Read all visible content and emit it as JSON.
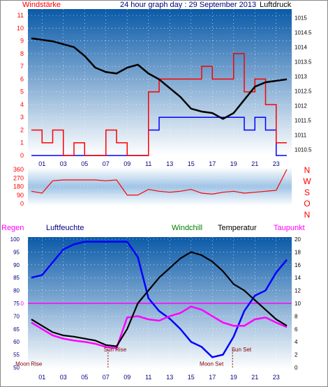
{
  "header": {
    "wind_title": "Windstärke",
    "graph_title": "24 hour graph day : 29 September 2013",
    "pressure_title": "Luftdruck"
  },
  "colors": {
    "wind_speed": "#ff0000",
    "wind_gust": "#0000ff",
    "pressure": "#000000",
    "direction": "#ff0000",
    "humidity": "#0000ff",
    "temperature": "#000000",
    "windchill": "#008000",
    "dewpoint": "#ff00ff",
    "zero_line": "#ff00ff",
    "label_dark": "#000080",
    "bg_top": "#0a5aa8",
    "bg_bottom": "#ffffff"
  },
  "chart_data": [
    {
      "type": "line",
      "id": "wind_pressure",
      "left_axis_label": "Windstärke",
      "right_axis_label": "Luftdruck",
      "left_ticks": [
        0,
        1,
        2,
        3,
        4,
        5,
        6,
        7,
        8,
        9,
        10,
        11
      ],
      "right_ticks": [
        1010.5,
        1011,
        1011.5,
        1012,
        1012.5,
        1013,
        1013.5,
        1014,
        1014.5,
        1015
      ],
      "x_labels": [
        "01",
        "03",
        "05",
        "07",
        "09",
        "11",
        "13",
        "15",
        "17",
        "19",
        "21",
        "23"
      ],
      "hours": [
        0,
        1,
        2,
        3,
        4,
        5,
        6,
        7,
        8,
        9,
        10,
        11,
        12,
        13,
        14,
        15,
        16,
        17,
        18,
        19,
        20,
        21,
        22,
        23,
        24
      ],
      "pressure": [
        1014.3,
        1014.25,
        1014.2,
        1014.1,
        1014.0,
        1013.7,
        1013.3,
        1013.15,
        1013.1,
        1013.3,
        1013.4,
        1013.1,
        1012.9,
        1012.6,
        1012.3,
        1011.9,
        1011.8,
        1011.75,
        1011.55,
        1011.75,
        1012.2,
        1012.65,
        1012.8,
        1012.85,
        1012.9
      ],
      "wind_speed": [
        2,
        1,
        2,
        0,
        1,
        0,
        0,
        2,
        1,
        0,
        0,
        5,
        6,
        6,
        6,
        6,
        7,
        6,
        6,
        8,
        5,
        6,
        4,
        1,
        0
      ],
      "wind_gust": [
        0,
        0,
        0,
        0,
        0,
        0,
        0,
        0,
        0,
        0,
        0,
        2,
        3,
        3,
        3,
        3,
        3,
        3,
        3,
        3,
        2,
        3,
        2,
        0,
        0
      ]
    },
    {
      "type": "scatter",
      "id": "wind_direction",
      "left_ticks": [
        0,
        90,
        180,
        270,
        360
      ],
      "right_ticks": [
        "N",
        "W",
        "S",
        "O",
        "N"
      ],
      "hours": [
        0,
        1,
        2,
        3,
        4,
        5,
        6,
        7,
        8,
        9,
        10,
        11,
        12,
        13,
        14,
        15,
        16,
        17,
        18,
        19,
        20,
        21,
        22,
        23,
        24
      ],
      "direction": [
        130,
        110,
        240,
        250,
        250,
        250,
        250,
        240,
        250,
        90,
        90,
        150,
        130,
        120,
        130,
        150,
        110,
        100,
        120,
        130,
        110,
        120,
        130,
        140,
        360
      ]
    },
    {
      "type": "line",
      "id": "temp_humidity",
      "series_labels": [
        "Regen",
        "Luftfeuchte",
        "Windchill",
        "Temperatur",
        "Taupunkt"
      ],
      "left_ticks": [
        50,
        55,
        60,
        65,
        70,
        75,
        80,
        85,
        90,
        95,
        100
      ],
      "right_ticks": [
        0,
        2,
        4,
        6,
        8,
        10,
        12,
        14,
        16,
        18,
        20
      ],
      "x_labels": [
        "01",
        "03",
        "05",
        "07",
        "09",
        "11",
        "13",
        "15",
        "17",
        "19",
        "21",
        "23"
      ],
      "rain_zero_label": "0",
      "hours": [
        0,
        1,
        2,
        3,
        4,
        5,
        6,
        7,
        8,
        9,
        10,
        11,
        12,
        13,
        14,
        15,
        16,
        17,
        18,
        19,
        20,
        21,
        22,
        23,
        24
      ],
      "humidity": [
        85,
        86,
        91,
        96,
        98,
        99,
        99,
        99,
        99,
        99,
        93,
        77,
        72,
        69,
        65,
        60,
        58,
        54,
        55,
        62,
        72,
        78,
        80,
        87,
        92
      ],
      "temperature": [
        7.5,
        6.5,
        5.5,
        5.0,
        4.8,
        4.5,
        4.2,
        3.5,
        3.3,
        6.0,
        10.0,
        12.0,
        14.0,
        15.5,
        17.0,
        18.0,
        17.5,
        16.5,
        15.0,
        13.0,
        12.0,
        10.5,
        9.0,
        7.5,
        6.5
      ],
      "dewpoint": [
        7.0,
        6.0,
        5.0,
        4.5,
        4.2,
        4.0,
        3.7,
        3.2,
        3.0,
        7.8,
        8.0,
        7.5,
        7.3,
        8.0,
        8.5,
        9.5,
        9.0,
        8.0,
        7.0,
        6.5,
        6.5,
        7.5,
        7.8,
        7.0,
        6.3
      ],
      "annotations": [
        {
          "text": "Moon Rise",
          "hour": -1.5,
          "value": 51.5,
          "color": "#800000"
        },
        {
          "text": "Sun Rise",
          "hour": 6.8,
          "value": 57,
          "color": "#800000"
        },
        {
          "text": "Moon Set",
          "hour": 15.8,
          "value": 51.5,
          "color": "#800000"
        },
        {
          "text": "Sun Set",
          "hour": 18.8,
          "value": 57,
          "color": "#800000"
        }
      ],
      "event_markers": [
        {
          "hour": 7.2
        },
        {
          "hour": 18.9
        }
      ]
    }
  ]
}
